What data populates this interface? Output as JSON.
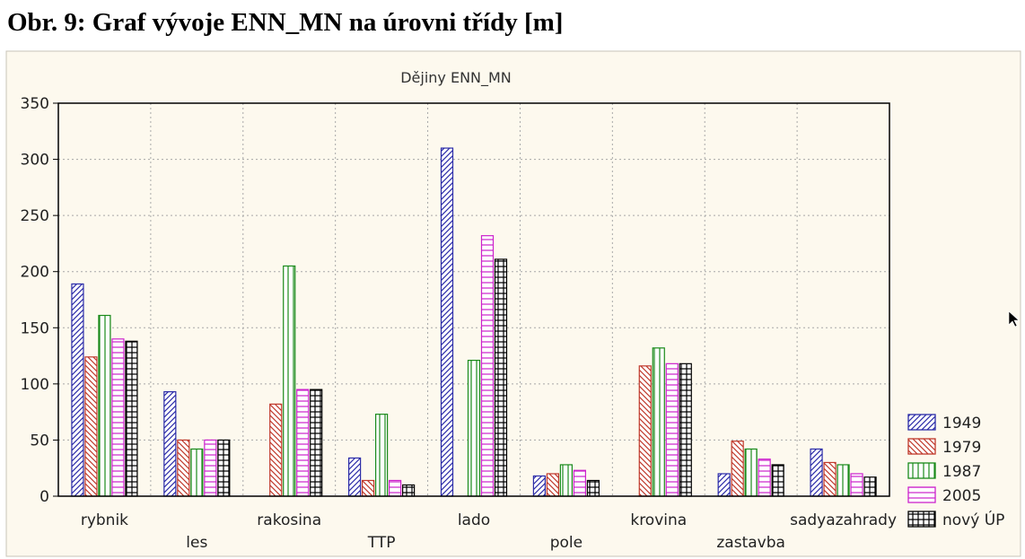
{
  "caption": "Obr. 9: Graf vývoje ENN_MN na úrovni třídy [m]",
  "chart_data": {
    "type": "bar",
    "title": "Dějiny ENN_MN",
    "xlabel": "",
    "ylabel": "",
    "ylim": [
      0,
      350
    ],
    "yticks": [
      0,
      50,
      100,
      150,
      200,
      250,
      300,
      350
    ],
    "grid": true,
    "legend_position": "right",
    "categories": [
      "rybnik",
      "les",
      "rakosina",
      "TTP",
      "lado",
      "pole",
      "krovina",
      "zastavba",
      "sadyazahrady"
    ],
    "series": [
      {
        "name": "1949",
        "color": "#2b2ba8",
        "pattern": "diag-fwd",
        "values": [
          189,
          93,
          0,
          34,
          310,
          18,
          0,
          20,
          42
        ]
      },
      {
        "name": "1979",
        "color": "#c0392b",
        "pattern": "diag-back",
        "values": [
          124,
          50,
          82,
          14,
          0,
          20,
          116,
          49,
          30
        ]
      },
      {
        "name": "1987",
        "color": "#1a8a1a",
        "pattern": "vertical",
        "values": [
          161,
          42,
          205,
          73,
          121,
          28,
          132,
          42,
          28
        ]
      },
      {
        "name": "2005",
        "color": "#cc22cc",
        "pattern": "horizontal",
        "values": [
          140,
          50,
          95,
          14,
          232,
          23,
          118,
          33,
          20
        ]
      },
      {
        "name": "nový ÚP",
        "color": "#000000",
        "pattern": "grid",
        "values": [
          138,
          50,
          95,
          10,
          211,
          14,
          118,
          28,
          17
        ]
      }
    ]
  }
}
